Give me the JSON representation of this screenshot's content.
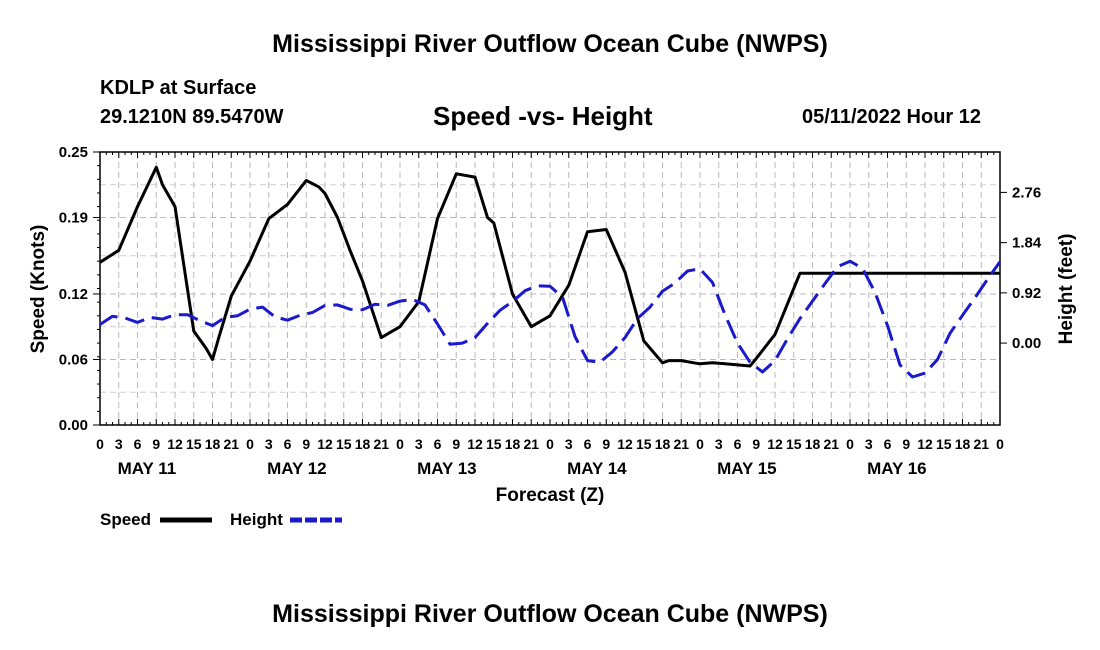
{
  "header": {
    "title": "Mississippi River Outflow Ocean Cube (NWPS)",
    "station": "KDLP at Surface",
    "coords": "29.1210N  89.5470W",
    "subtitle": "Speed -vs- Height",
    "datetime": "05/11/2022 Hour 12"
  },
  "footer": {
    "title": "Mississippi River Outflow Ocean Cube (NWPS)"
  },
  "chart_data": {
    "type": "line",
    "title": "Speed -vs- Height",
    "xlabel": "Forecast (Z)",
    "ylabel_left": "Speed (Knots)",
    "ylabel_right": "Height (feet)",
    "x_range_hours": [
      0,
      144
    ],
    "x_tick_hours": [
      0,
      3,
      6,
      9,
      12,
      15,
      18,
      21,
      24,
      27,
      30,
      33,
      36,
      39,
      42,
      45,
      48,
      51,
      54,
      57,
      60,
      63,
      66,
      69,
      72,
      75,
      78,
      81,
      84,
      87,
      90,
      93,
      96,
      99,
      102,
      105,
      108,
      111,
      114,
      117,
      120,
      123,
      126,
      129,
      132,
      135,
      138,
      141,
      144
    ],
    "x_tick_labels": [
      "0",
      "3",
      "6",
      "9",
      "12",
      "15",
      "18",
      "21",
      "0",
      "3",
      "6",
      "9",
      "12",
      "15",
      "18",
      "21",
      "0",
      "3",
      "6",
      "9",
      "12",
      "15",
      "18",
      "21",
      "0",
      "3",
      "6",
      "9",
      "12",
      "15",
      "18",
      "21",
      "0",
      "3",
      "6",
      "9",
      "12",
      "15",
      "18",
      "21",
      "0",
      "3",
      "6",
      "9",
      "12",
      "15",
      "18",
      "21",
      "0"
    ],
    "day_labels": [
      {
        "label": "MAY 11",
        "hour": 7.5
      },
      {
        "label": "MAY 12",
        "hour": 31.5
      },
      {
        "label": "MAY 13",
        "hour": 55.5
      },
      {
        "label": "MAY 14",
        "hour": 79.5
      },
      {
        "label": "MAY 15",
        "hour": 103.5
      },
      {
        "label": "MAY 16",
        "hour": 127.5
      }
    ],
    "left_axis": {
      "range": [
        0,
        0.25
      ],
      "ticks": [
        0.0,
        0.06,
        0.12,
        0.19,
        0.25
      ],
      "tick_labels": [
        "0.00",
        "0.06",
        "0.12",
        "0.19",
        "0.25"
      ]
    },
    "right_axis": {
      "range": [
        -1.5,
        3.5
      ],
      "ticks": [
        0.0,
        0.92,
        1.84,
        2.76
      ],
      "tick_labels": [
        "0.00",
        "0.92",
        "1.84",
        "2.76"
      ]
    },
    "grid": true,
    "legend": [
      {
        "name": "Speed",
        "color": "#000000",
        "style": "solid"
      },
      {
        "name": "Height",
        "color": "#1a1acc",
        "style": "dashed"
      }
    ],
    "series": [
      {
        "name": "Speed",
        "axis": "left",
        "color": "#000000",
        "dash": "",
        "x": [
          0,
          3,
          6,
          9,
          10,
          12,
          15,
          17,
          18,
          19,
          21,
          24,
          27,
          30,
          33,
          35,
          36,
          38,
          40,
          42,
          45,
          48,
          51,
          54,
          57,
          60,
          62,
          63,
          66,
          69,
          72,
          75,
          78,
          81,
          84,
          87,
          90,
          91,
          93,
          95,
          96,
          98,
          100,
          102,
          104,
          105,
          108,
          112,
          120,
          130,
          144
        ],
        "y": [
          0.149,
          0.16,
          0.2,
          0.236,
          0.22,
          0.2,
          0.086,
          0.07,
          0.06,
          0.08,
          0.118,
          0.15,
          0.189,
          0.202,
          0.224,
          0.218,
          0.212,
          0.19,
          0.16,
          0.132,
          0.08,
          0.09,
          0.113,
          0.189,
          0.23,
          0.227,
          0.19,
          0.185,
          0.12,
          0.09,
          0.1,
          0.128,
          0.177,
          0.179,
          0.14,
          0.077,
          0.057,
          0.059,
          0.059,
          0.057,
          0.056,
          0.057,
          0.056,
          0.055,
          0.054,
          0.061,
          0.083,
          0.139,
          0.139,
          0.139,
          0.139
        ]
      },
      {
        "name": "Height",
        "axis": "right",
        "color": "#1a1acc",
        "dash": "20,8",
        "x": [
          0,
          2,
          4,
          6,
          8,
          10,
          12,
          14,
          16,
          18,
          20,
          22,
          24,
          26,
          28,
          30,
          32,
          34,
          36,
          38,
          40,
          42,
          44,
          46,
          48,
          50,
          52,
          54,
          56,
          58,
          60,
          62,
          64,
          66,
          68,
          70,
          72,
          74,
          76,
          78,
          80,
          82,
          84,
          86,
          88,
          90,
          92,
          94,
          96,
          98,
          100,
          102,
          104,
          106,
          108,
          110,
          112,
          114,
          116,
          118,
          120,
          122,
          124,
          126,
          128,
          130,
          132,
          134,
          136,
          138,
          140,
          142,
          144
        ],
        "y": [
          0.34,
          0.49,
          0.46,
          0.38,
          0.47,
          0.44,
          0.52,
          0.52,
          0.41,
          0.32,
          0.47,
          0.5,
          0.62,
          0.66,
          0.48,
          0.42,
          0.51,
          0.56,
          0.69,
          0.7,
          0.62,
          0.61,
          0.71,
          0.69,
          0.77,
          0.8,
          0.7,
          0.35,
          -0.02,
          0.0,
          0.1,
          0.36,
          0.6,
          0.76,
          0.96,
          1.05,
          1.04,
          0.84,
          0.12,
          -0.32,
          -0.35,
          -0.16,
          0.1,
          0.45,
          0.66,
          0.95,
          1.1,
          1.32,
          1.36,
          1.11,
          0.52,
          0.0,
          -0.35,
          -0.53,
          -0.32,
          0.08,
          0.45,
          0.77,
          1.09,
          1.4,
          1.5,
          1.37,
          0.93,
          0.32,
          -0.4,
          -0.62,
          -0.55,
          -0.3,
          0.18,
          0.51,
          0.83,
          1.17,
          1.49
        ]
      }
    ]
  }
}
